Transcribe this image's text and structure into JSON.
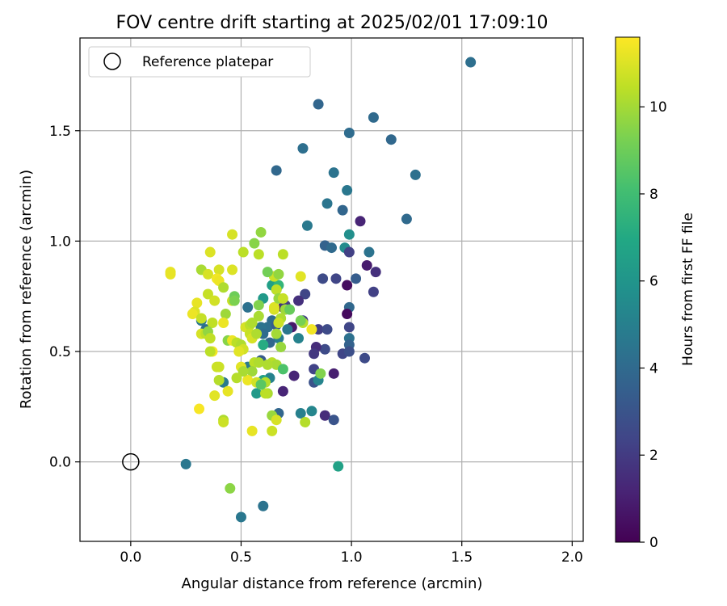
{
  "chart_data": {
    "type": "scatter",
    "title": "FOV centre drift starting at 2025/02/01 17:09:10",
    "xlabel": "Angular distance from reference (arcmin)",
    "ylabel": "Rotation from reference (arcmin)",
    "xlim": [
      -0.23,
      2.05
    ],
    "ylim": [
      -0.36,
      1.92
    ],
    "xticks": [
      0.0,
      0.5,
      1.0,
      1.5,
      2.0
    ],
    "xtick_labels": [
      "0.0",
      "0.5",
      "1.0",
      "1.5",
      "2.0"
    ],
    "yticks": [
      0.0,
      0.5,
      1.0,
      1.5
    ],
    "ytick_labels": [
      "0.0",
      "0.5",
      "1.0",
      "1.5"
    ],
    "grid": true,
    "legend": {
      "position": "top-left",
      "entries": [
        "Reference platepar"
      ]
    },
    "reference_point": {
      "x": 0.0,
      "y": 0.0,
      "label": "Reference platepar"
    },
    "colorbar": {
      "label": "Hours from first FF file",
      "min": 0,
      "max": 11.6,
      "ticks": [
        0,
        2,
        4,
        6,
        8,
        10
      ],
      "tick_labels": [
        "0",
        "2",
        "4",
        "6",
        "8",
        "10"
      ],
      "colormap": "viridis"
    },
    "points": [
      [
        1.54,
        1.81,
        4.2
      ],
      [
        0.85,
        1.62,
        3.8
      ],
      [
        1.1,
        1.56,
        4.0
      ],
      [
        0.99,
        1.49,
        4.1
      ],
      [
        1.18,
        1.46,
        3.9
      ],
      [
        0.78,
        1.42,
        4.2
      ],
      [
        0.66,
        1.32,
        3.9
      ],
      [
        1.29,
        1.3,
        4.3
      ],
      [
        0.92,
        1.31,
        4.4
      ],
      [
        0.98,
        1.23,
        4.6
      ],
      [
        0.89,
        1.17,
        4.5
      ],
      [
        0.96,
        1.14,
        3.8
      ],
      [
        1.25,
        1.1,
        4.0
      ],
      [
        1.04,
        1.09,
        1.2
      ],
      [
        0.8,
        1.07,
        4.7
      ],
      [
        0.99,
        1.03,
        5.7
      ],
      [
        0.88,
        0.98,
        3.6
      ],
      [
        0.91,
        0.97,
        4.0
      ],
      [
        0.97,
        0.97,
        5.5
      ],
      [
        1.08,
        0.95,
        4.4
      ],
      [
        0.99,
        0.95,
        2.2
      ],
      [
        1.07,
        0.89,
        0.9
      ],
      [
        1.11,
        0.86,
        1.6
      ],
      [
        0.87,
        0.83,
        2.6
      ],
      [
        0.93,
        0.83,
        2.4
      ],
      [
        1.02,
        0.83,
        3.4
      ],
      [
        0.98,
        0.8,
        0.4
      ],
      [
        1.1,
        0.77,
        2.2
      ],
      [
        0.79,
        0.76,
        2.4
      ],
      [
        0.76,
        0.73,
        1.6
      ],
      [
        0.99,
        0.7,
        3.9
      ],
      [
        0.98,
        0.67,
        0.3
      ],
      [
        0.78,
        0.64,
        2.1
      ],
      [
        0.73,
        0.61,
        0.8
      ],
      [
        0.99,
        0.61,
        2.4
      ],
      [
        0.85,
        0.6,
        2.1
      ],
      [
        0.89,
        0.6,
        2.6
      ],
      [
        0.99,
        0.56,
        4.3
      ],
      [
        0.99,
        0.53,
        3.6
      ],
      [
        0.76,
        0.56,
        5.1
      ],
      [
        0.88,
        0.51,
        2.6
      ],
      [
        0.84,
        0.52,
        1.5
      ],
      [
        0.96,
        0.49,
        2.4
      ],
      [
        1.06,
        0.47,
        2.6
      ],
      [
        0.99,
        0.5,
        2.8
      ],
      [
        0.83,
        0.49,
        1.9
      ],
      [
        0.83,
        0.42,
        2.3
      ],
      [
        0.74,
        0.39,
        1.2
      ],
      [
        0.92,
        0.4,
        1.0
      ],
      [
        0.83,
        0.36,
        2.9
      ],
      [
        0.85,
        0.37,
        5.2
      ],
      [
        0.69,
        0.32,
        1.2
      ],
      [
        0.88,
        0.21,
        1.5
      ],
      [
        0.92,
        0.19,
        3.0
      ],
      [
        0.82,
        0.23,
        5.3
      ],
      [
        0.77,
        0.22,
        5.0
      ],
      [
        0.67,
        0.22,
        3.8
      ],
      [
        0.25,
        -0.01,
        4.6
      ],
      [
        0.94,
        -0.02,
        6.6
      ],
      [
        0.45,
        -0.12,
        9.6
      ],
      [
        0.6,
        -0.2,
        4.4
      ],
      [
        0.5,
        -0.25,
        4.6
      ],
      [
        0.64,
        0.64,
        4.1
      ],
      [
        0.62,
        0.61,
        4.2
      ],
      [
        0.69,
        0.7,
        0.6
      ],
      [
        0.7,
        0.71,
        2.0
      ],
      [
        0.66,
        0.62,
        3.4
      ],
      [
        0.6,
        0.74,
        6.2
      ],
      [
        0.64,
        0.8,
        6.5
      ],
      [
        0.53,
        0.7,
        4.3
      ],
      [
        0.53,
        0.61,
        4.8
      ],
      [
        0.59,
        0.61,
        4.4
      ],
      [
        0.6,
        0.58,
        4.1
      ],
      [
        0.67,
        0.56,
        4.9
      ],
      [
        0.71,
        0.6,
        4.6
      ],
      [
        0.63,
        0.54,
        3.9
      ],
      [
        0.59,
        0.46,
        3.3
      ],
      [
        0.53,
        0.43,
        4.7
      ],
      [
        0.63,
        0.38,
        5.1
      ],
      [
        0.57,
        0.31,
        6.2
      ],
      [
        0.6,
        0.37,
        6.6
      ],
      [
        0.42,
        0.36,
        4.7
      ],
      [
        0.34,
        0.6,
        4.1
      ],
      [
        0.32,
        0.64,
        4.6
      ],
      [
        0.6,
        0.53,
        7.1
      ],
      [
        0.67,
        0.8,
        7.6
      ],
      [
        0.66,
        0.78,
        7.2
      ],
      [
        0.56,
        0.99,
        9.5
      ],
      [
        0.59,
        1.04,
        9.7
      ],
      [
        0.46,
        1.03,
        10.9
      ],
      [
        0.51,
        0.95,
        10.4
      ],
      [
        0.58,
        0.94,
        10.4
      ],
      [
        0.69,
        0.94,
        10.4
      ],
      [
        0.36,
        0.95,
        11.0
      ],
      [
        0.32,
        0.87,
        10.1
      ],
      [
        0.35,
        0.85,
        10.9
      ],
      [
        0.4,
        0.87,
        10.9
      ],
      [
        0.46,
        0.87,
        11.0
      ],
      [
        0.18,
        0.86,
        11.2
      ],
      [
        0.18,
        0.85,
        11.2
      ],
      [
        0.39,
        0.83,
        11.4
      ],
      [
        0.4,
        0.82,
        11.3
      ],
      [
        0.42,
        0.79,
        10.2
      ],
      [
        0.35,
        0.76,
        10.6
      ],
      [
        0.38,
        0.73,
        10.8
      ],
      [
        0.46,
        0.73,
        10.6
      ],
      [
        0.47,
        0.75,
        9.0
      ],
      [
        0.3,
        0.72,
        11.2
      ],
      [
        0.29,
        0.68,
        11.0
      ],
      [
        0.28,
        0.67,
        11.3
      ],
      [
        0.32,
        0.65,
        10.6
      ],
      [
        0.37,
        0.63,
        10.5
      ],
      [
        0.43,
        0.67,
        9.9
      ],
      [
        0.42,
        0.63,
        11.3
      ],
      [
        0.32,
        0.58,
        10.9
      ],
      [
        0.34,
        0.58,
        10.5
      ],
      [
        0.35,
        0.59,
        9.7
      ],
      [
        0.36,
        0.56,
        10.5
      ],
      [
        0.44,
        0.55,
        9.5
      ],
      [
        0.46,
        0.55,
        11.3
      ],
      [
        0.48,
        0.54,
        10.4
      ],
      [
        0.5,
        0.53,
        10.2
      ],
      [
        0.51,
        0.51,
        10.8
      ],
      [
        0.49,
        0.5,
        11.1
      ],
      [
        0.37,
        0.5,
        11.4
      ],
      [
        0.36,
        0.5,
        10.4
      ],
      [
        0.52,
        0.61,
        10.9
      ],
      [
        0.54,
        0.62,
        10.4
      ],
      [
        0.55,
        0.63,
        10.2
      ],
      [
        0.54,
        0.58,
        10.6
      ],
      [
        0.55,
        0.56,
        10.9
      ],
      [
        0.57,
        0.58,
        10.2
      ],
      [
        0.58,
        0.66,
        10.1
      ],
      [
        0.58,
        0.71,
        9.4
      ],
      [
        0.65,
        0.69,
        10.9
      ],
      [
        0.65,
        0.7,
        11.0
      ],
      [
        0.65,
        0.84,
        9.6
      ],
      [
        0.65,
        0.84,
        10.7
      ],
      [
        0.66,
        0.78,
        10.5
      ],
      [
        0.67,
        0.74,
        9.8
      ],
      [
        0.67,
        0.85,
        9.7
      ],
      [
        0.69,
        0.74,
        10.6
      ],
      [
        0.7,
        0.69,
        9.9
      ],
      [
        0.68,
        0.65,
        10.2
      ],
      [
        0.67,
        0.63,
        10.7
      ],
      [
        0.66,
        0.58,
        10.0
      ],
      [
        0.68,
        0.52,
        9.8
      ],
      [
        0.64,
        0.45,
        10.4
      ],
      [
        0.66,
        0.44,
        10.1
      ],
      [
        0.62,
        0.44,
        10.2
      ],
      [
        0.56,
        0.45,
        10.4
      ],
      [
        0.58,
        0.45,
        10.2
      ],
      [
        0.55,
        0.41,
        9.9
      ],
      [
        0.53,
        0.37,
        11.3
      ],
      [
        0.57,
        0.36,
        10.8
      ],
      [
        0.61,
        0.36,
        10.3
      ],
      [
        0.62,
        0.31,
        10.1
      ],
      [
        0.61,
        0.31,
        10.4
      ],
      [
        0.64,
        0.21,
        9.8
      ],
      [
        0.66,
        0.19,
        10.9
      ],
      [
        0.64,
        0.14,
        10.7
      ],
      [
        0.55,
        0.14,
        11.2
      ],
      [
        0.5,
        0.43,
        11.1
      ],
      [
        0.51,
        0.41,
        10.1
      ],
      [
        0.48,
        0.38,
        10.3
      ],
      [
        0.44,
        0.32,
        11.2
      ],
      [
        0.4,
        0.37,
        10.3
      ],
      [
        0.39,
        0.43,
        10.7
      ],
      [
        0.4,
        0.43,
        10.7
      ],
      [
        0.38,
        0.3,
        11.1
      ],
      [
        0.42,
        0.19,
        10.2
      ],
      [
        0.31,
        0.24,
        11.5
      ],
      [
        0.42,
        0.18,
        10.7
      ],
      [
        0.77,
        0.84,
        11.1
      ],
      [
        0.78,
        0.63,
        10.3
      ],
      [
        0.77,
        0.64,
        9.2
      ],
      [
        0.82,
        0.6,
        11.4
      ],
      [
        0.86,
        0.4,
        9.4
      ],
      [
        0.79,
        0.18,
        10.3
      ],
      [
        0.69,
        0.42,
        8.3
      ],
      [
        0.72,
        0.69,
        8.9
      ],
      [
        0.59,
        0.35,
        8.6
      ],
      [
        0.47,
        0.73,
        9.3
      ],
      [
        0.62,
        0.86,
        9.1
      ]
    ]
  }
}
